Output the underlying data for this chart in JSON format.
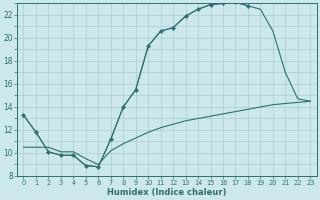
{
  "background_color": "#cce8ec",
  "grid_color": "#aacccc",
  "line_color": "#2d7070",
  "xlabel": "Humidex (Indice chaleur)",
  "xlim": [
    -0.5,
    23.5
  ],
  "ylim": [
    8,
    23
  ],
  "yticks": [
    8,
    10,
    12,
    14,
    16,
    18,
    20,
    22
  ],
  "xticks": [
    0,
    1,
    2,
    3,
    4,
    5,
    6,
    7,
    8,
    9,
    10,
    11,
    12,
    13,
    14,
    15,
    16,
    17,
    18,
    19,
    20,
    21,
    22,
    23
  ],
  "line_jagged_x": [
    0,
    1,
    2,
    3,
    4,
    5,
    6,
    7,
    8,
    9,
    10,
    11,
    12,
    13,
    14,
    15,
    16,
    17,
    18
  ],
  "line_jagged_y": [
    13.3,
    11.8,
    10.1,
    9.8,
    9.8,
    8.9,
    8.8,
    11.2,
    14.0,
    15.5,
    19.3,
    20.6,
    20.9,
    21.9,
    22.5,
    22.9,
    23.0,
    23.1,
    22.8
  ],
  "line_smooth_x": [
    0,
    1,
    2,
    3,
    4,
    5,
    6,
    7,
    8,
    9,
    10,
    11,
    12,
    13,
    14,
    15,
    16,
    17,
    18,
    19,
    20,
    21,
    22,
    23
  ],
  "line_smooth_y": [
    13.3,
    11.8,
    10.1,
    9.8,
    9.8,
    8.9,
    8.8,
    11.2,
    14.0,
    15.5,
    19.3,
    20.6,
    20.9,
    21.9,
    22.5,
    22.9,
    23.0,
    23.1,
    22.8,
    22.5,
    20.6,
    17.0,
    14.7,
    14.5
  ],
  "line_diag_x": [
    0,
    1,
    2,
    3,
    4,
    5,
    6,
    7,
    8,
    9,
    10,
    11,
    12,
    13,
    14,
    15,
    16,
    17,
    18,
    19,
    20,
    21,
    22,
    23
  ],
  "line_diag_y": [
    10.5,
    10.5,
    10.5,
    10.1,
    10.1,
    9.5,
    9.0,
    10.2,
    10.8,
    11.3,
    11.8,
    12.2,
    12.5,
    12.8,
    13.0,
    13.2,
    13.4,
    13.6,
    13.8,
    14.0,
    14.2,
    14.3,
    14.4,
    14.5
  ]
}
